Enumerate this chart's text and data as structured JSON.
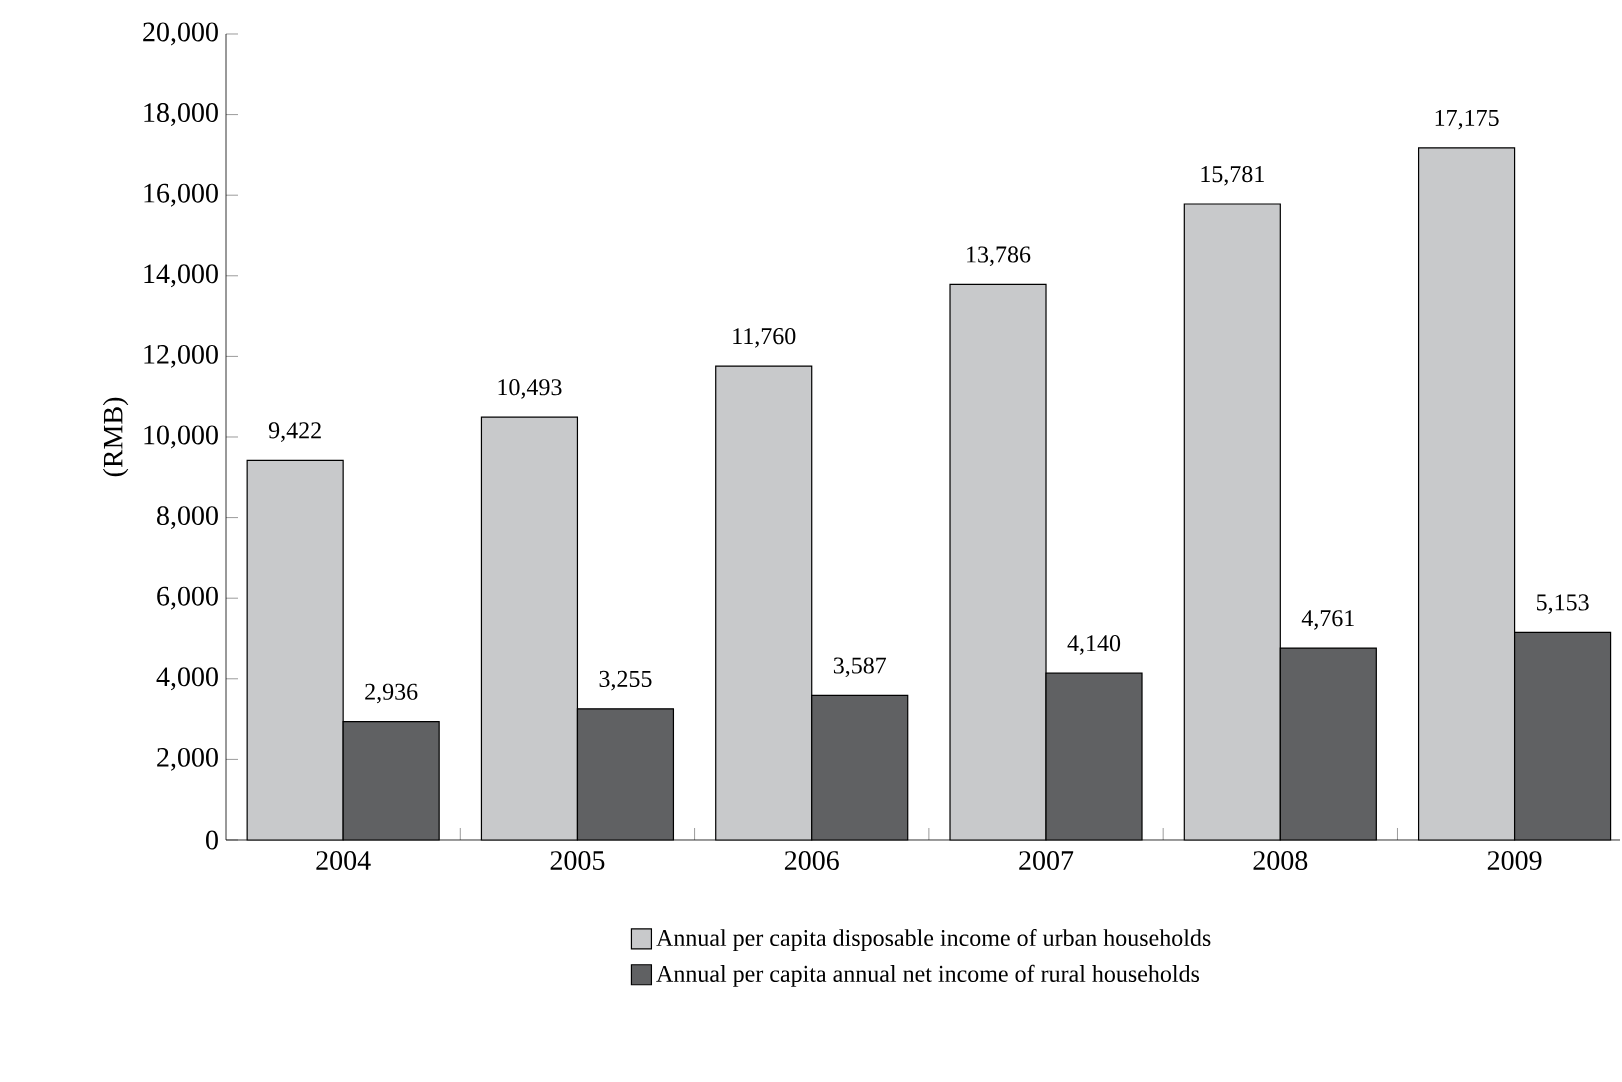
{
  "chart_data": {
    "type": "bar",
    "ylabel": "(RMB)",
    "categories": [
      "2004",
      "2005",
      "2006",
      "2007",
      "2008",
      "2009"
    ],
    "ylim": [
      0,
      20000
    ],
    "yticks": [
      0,
      {
        "value": 2000,
        "label": "2,000"
      },
      {
        "value": 4000,
        "label": "4,000"
      },
      {
        "value": 6000,
        "label": "6,000"
      },
      {
        "value": 8000,
        "label": "8,000"
      },
      {
        "value": 10000,
        "label": "10,000"
      },
      {
        "value": 12000,
        "label": "12,000"
      },
      {
        "value": 14000,
        "label": "14,000"
      },
      {
        "value": 16000,
        "label": "16,000"
      },
      {
        "value": 18000,
        "label": "18,000"
      },
      {
        "value": 20000,
        "label": "20,000"
      }
    ],
    "series": [
      {
        "name": "Annual per capita disposable income of urban households",
        "color": "#c8c9cb",
        "values": [
          9422,
          10493,
          11760,
          13786,
          15781,
          17175
        ],
        "value_labels": [
          "9,422",
          "10,493",
          "11,760",
          "13,786",
          "15,781",
          "17,175"
        ]
      },
      {
        "name": "Annual per capita annual net income of rural households",
        "color": "#606163",
        "values": [
          2936,
          3255,
          3587,
          4140,
          4761,
          5153
        ],
        "value_labels": [
          "2,936",
          "3,255",
          "3,587",
          "4,140",
          "4,761",
          "5,153"
        ]
      }
    ],
    "legend": "bottom",
    "grid": false
  }
}
